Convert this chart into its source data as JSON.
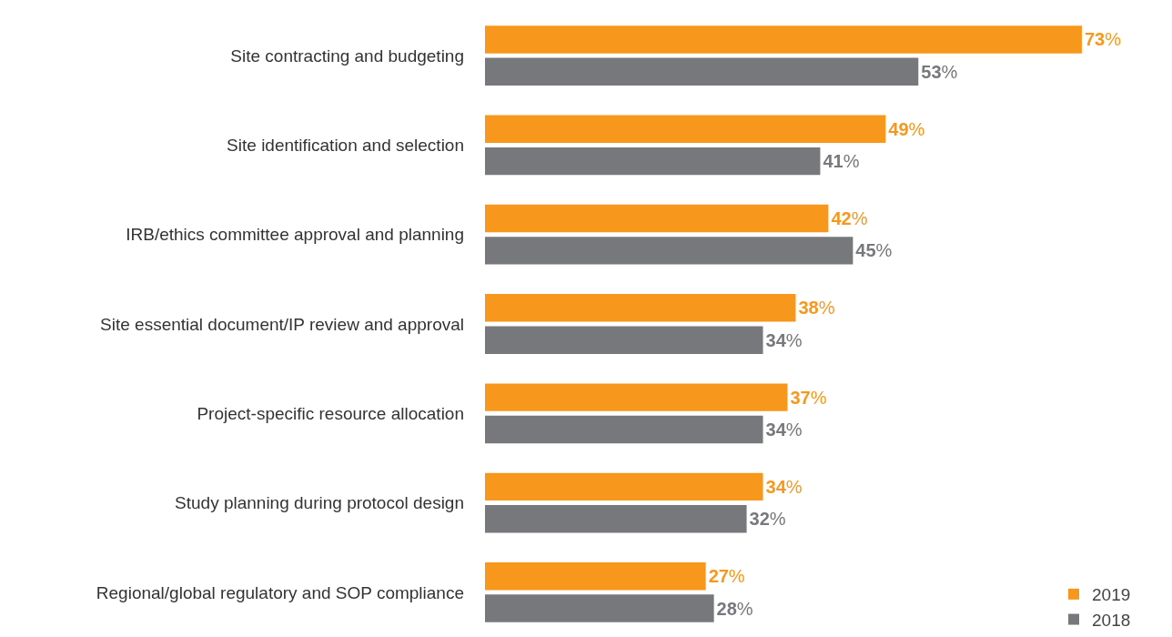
{
  "chart_data": {
    "type": "bar",
    "orientation": "horizontal",
    "categories": [
      "Site contracting and budgeting",
      "Site identification and selection",
      "IRB/ethics committee approval and planning",
      "Site essential document/IP review and approval",
      "Project-specific resource allocation",
      "Study planning during protocol design",
      "Regional/global regulatory and SOP compliance"
    ],
    "series": [
      {
        "name": "2019",
        "color": "#f7981d",
        "values": [
          73,
          49,
          42,
          38,
          37,
          34,
          27
        ],
        "value_labels": [
          "73%",
          "49%",
          "42%",
          "38%",
          "37%",
          "34%",
          "27%"
        ]
      },
      {
        "name": "2018",
        "color": "#77787b",
        "values": [
          53,
          41,
          45,
          34,
          34,
          32,
          28
        ],
        "value_labels": [
          "53%",
          "41%",
          "45%",
          "34%",
          "34%",
          "32%",
          "28%"
        ]
      }
    ],
    "legend": "bottom right"
  }
}
